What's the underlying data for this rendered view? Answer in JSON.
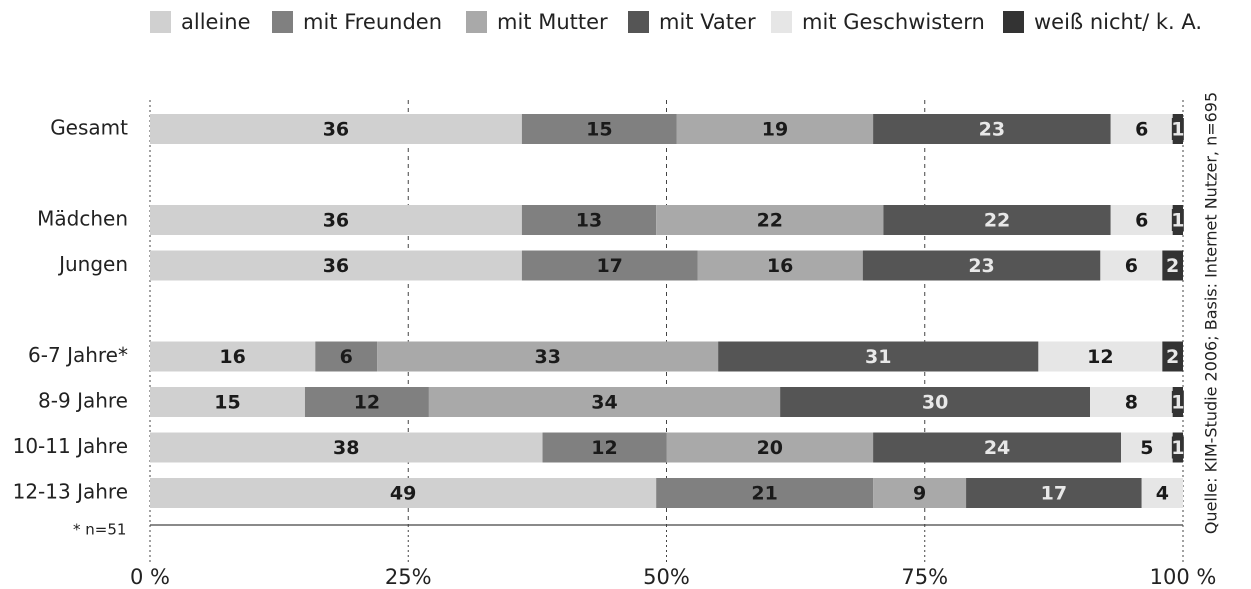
{
  "chart_data": {
    "type": "stacked_bar_horizontal",
    "categories": [
      "Gesamt",
      null,
      "Mädchen",
      "Jungen",
      null,
      "6-7 Jahre*",
      "8-9 Jahre",
      "10-11 Jahre",
      "12-13 Jahre"
    ],
    "series": [
      {
        "name": "alleine",
        "color": "#d0d0d0",
        "values": [
          36,
          null,
          36,
          36,
          null,
          16,
          15,
          38,
          49
        ]
      },
      {
        "name": "mit Freunden",
        "color": "#808080",
        "values": [
          15,
          null,
          13,
          17,
          null,
          6,
          12,
          12,
          21
        ]
      },
      {
        "name": "mit Mutter",
        "color": "#a9a9a9",
        "values": [
          19,
          null,
          22,
          16,
          null,
          33,
          34,
          20,
          9
        ]
      },
      {
        "name": "mit Vater",
        "color": "#555555",
        "values": [
          23,
          null,
          22,
          23,
          null,
          31,
          30,
          24,
          17
        ]
      },
      {
        "name": "mit Geschwistern",
        "color": "#e6e6e6",
        "values": [
          6,
          null,
          6,
          6,
          null,
          12,
          8,
          5,
          4
        ]
      },
      {
        "name": "weiß nicht/ k. A.",
        "color": "#333333",
        "values": [
          1,
          null,
          1,
          2,
          null,
          2,
          1,
          1,
          null
        ]
      }
    ],
    "xlim": [
      0,
      100
    ],
    "xticks": [
      {
        "value": 0,
        "label": "0 %"
      },
      {
        "value": 25,
        "label": "25%"
      },
      {
        "value": 50,
        "label": "50%"
      },
      {
        "value": 75,
        "label": "75%"
      },
      {
        "value": 100,
        "label": "100 %"
      }
    ],
    "grid": true,
    "legend": "top",
    "footnote": "* n=51",
    "source": "Quelle: KIM-Studie 2006; Basis: Internet Nutzer, n=695"
  }
}
